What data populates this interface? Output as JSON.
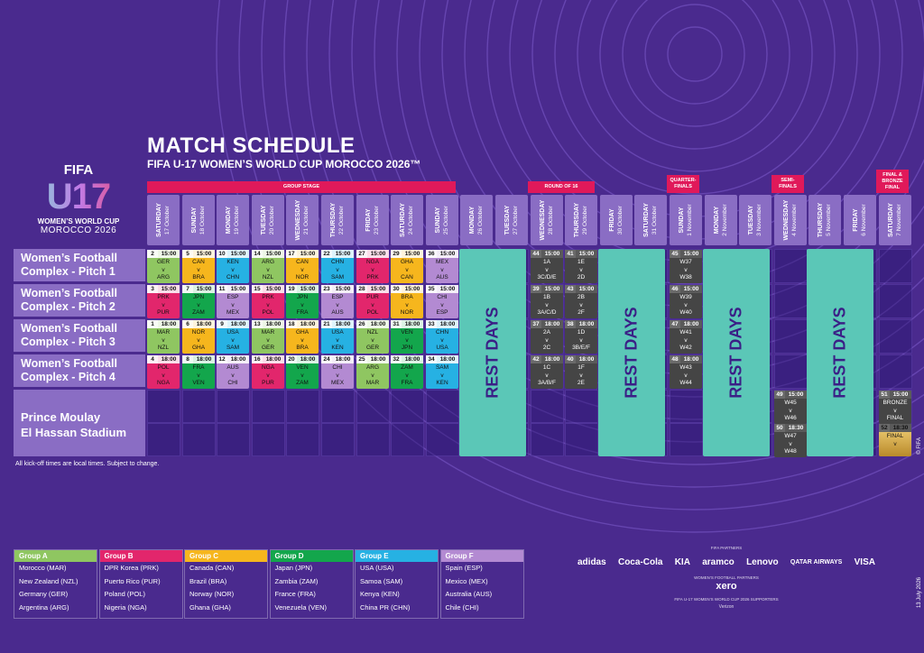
{
  "title": "MATCH SCHEDULE",
  "subtitle": "FIFA U-17 WOMEN’S WORLD CUP MOROCCO 2026™",
  "logo": {
    "fifa": "FIFA",
    "u17": "U17",
    "wwc": "WOMEN’S WORLD CUP",
    "country": "MOROCCO 2026"
  },
  "stages": {
    "group": "GROUP STAGE",
    "r16": "ROUND OF 16",
    "qf1": "QUARTER-",
    "qf2": "FINALS",
    "sf1": "SEMI-",
    "sf2": "FINALS",
    "f1": "FINAL &",
    "f2": "BRONZE",
    "f3": "FINAL"
  },
  "days": [
    {
      "d": "SATURDAY",
      "t": "17 October"
    },
    {
      "d": "SUNDAY",
      "t": "18 October"
    },
    {
      "d": "MONDAY",
      "t": "19 October"
    },
    {
      "d": "TUESDAY",
      "t": "20 October"
    },
    {
      "d": "WEDNESDAY",
      "t": "21 October"
    },
    {
      "d": "THURSDAY",
      "t": "22 October"
    },
    {
      "d": "FRIDAY",
      "t": "23 October"
    },
    {
      "d": "SATURDAY",
      "t": "24 October"
    },
    {
      "d": "SUNDAY",
      "t": "25 October"
    },
    {
      "d": "MONDAY",
      "t": "26 October"
    },
    {
      "d": "TUESDAY",
      "t": "27 October"
    },
    {
      "d": "WEDNESDAY",
      "t": "28 October"
    },
    {
      "d": "THURSDAY",
      "t": "29 October"
    },
    {
      "d": "FRIDAY",
      "t": "30 October"
    },
    {
      "d": "SATURDAY",
      "t": "31 October"
    },
    {
      "d": "SUNDAY",
      "t": "1 November"
    },
    {
      "d": "MONDAY",
      "t": "2 November"
    },
    {
      "d": "TUESDAY",
      "t": "3 November"
    },
    {
      "d": "WEDNESDAY",
      "t": "4 November"
    },
    {
      "d": "THURSDAY",
      "t": "5 November"
    },
    {
      "d": "FRIDAY",
      "t": "6 November"
    },
    {
      "d": "SATURDAY",
      "t": "7 November"
    }
  ],
  "venues": [
    {
      "a": "Women’s Football",
      "b": "Complex - Pitch 1"
    },
    {
      "a": "Women’s Football",
      "b": "Complex - Pitch 2"
    },
    {
      "a": "Women’s Football",
      "b": "Complex - Pitch 3"
    },
    {
      "a": "Women’s Football",
      "b": "Complex - Pitch 4"
    },
    {
      "a": "Prince Moulay",
      "b": "El Hassan Stadium"
    }
  ],
  "rest_label": "REST DAYS",
  "matches": [
    {
      "n": "2",
      "t": "15:00",
      "a": "GER",
      "b": "ARG",
      "c": "#8fc661"
    },
    {
      "n": "5",
      "t": "15:00",
      "a": "CAN",
      "b": "BRA",
      "c": "#f6b61d"
    },
    {
      "n": "10",
      "t": "15:00",
      "a": "KEN",
      "b": "CHN",
      "c": "#26b1e3"
    },
    {
      "n": "14",
      "t": "15:00",
      "a": "ARG",
      "b": "NZL",
      "c": "#8fc661"
    },
    {
      "n": "17",
      "t": "15:00",
      "a": "CAN",
      "b": "NOR",
      "c": "#f6b61d"
    },
    {
      "n": "22",
      "t": "15:00",
      "a": "CHN",
      "b": "SAM",
      "c": "#26b1e3"
    },
    {
      "n": "27",
      "t": "15:00",
      "a": "NGA",
      "b": "PRK",
      "c": "#e2266c"
    },
    {
      "n": "29",
      "t": "15:00",
      "a": "GHA",
      "b": "CAN",
      "c": "#f6b61d"
    },
    {
      "n": "36",
      "t": "15:00",
      "a": "MEX",
      "b": "AUS",
      "c": "#b38ad2"
    },
    {
      "n": "3",
      "t": "15:00",
      "a": "PRK",
      "b": "PUR",
      "c": "#e2266c"
    },
    {
      "n": "7",
      "t": "15:00",
      "a": "JPN",
      "b": "ZAM",
      "c": "#13a64c"
    },
    {
      "n": "11",
      "t": "15:00",
      "a": "ESP",
      "b": "MEX",
      "c": "#b38ad2"
    },
    {
      "n": "15",
      "t": "15:00",
      "a": "PRK",
      "b": "POL",
      "c": "#e2266c"
    },
    {
      "n": "19",
      "t": "15:00",
      "a": "JPN",
      "b": "FRA",
      "c": "#13a64c"
    },
    {
      "n": "23",
      "t": "15:00",
      "a": "ESP",
      "b": "AUS",
      "c": "#b38ad2"
    },
    {
      "n": "28",
      "t": "15:00",
      "a": "PUR",
      "b": "POL",
      "c": "#e2266c"
    },
    {
      "n": "30",
      "t": "15:00",
      "a": "BRA",
      "b": "NOR",
      "c": "#f6b61d"
    },
    {
      "n": "35",
      "t": "15:00",
      "a": "CHI",
      "b": "ESP",
      "c": "#b38ad2"
    },
    {
      "n": "1",
      "t": "18:00",
      "a": "MAR",
      "b": "NZL",
      "c": "#8fc661"
    },
    {
      "n": "6",
      "t": "18:00",
      "a": "NOR",
      "b": "GHA",
      "c": "#f6b61d"
    },
    {
      "n": "9",
      "t": "18:00",
      "a": "USA",
      "b": "SAM",
      "c": "#26b1e3"
    },
    {
      "n": "13",
      "t": "18:00",
      "a": "MAR",
      "b": "GER",
      "c": "#8fc661"
    },
    {
      "n": "18",
      "t": "18:00",
      "a": "GHA",
      "b": "BRA",
      "c": "#f6b61d"
    },
    {
      "n": "21",
      "t": "18:00",
      "a": "USA",
      "b": "KEN",
      "c": "#26b1e3"
    },
    {
      "n": "26",
      "t": "18:00",
      "a": "NZL",
      "b": "GER",
      "c": "#8fc661"
    },
    {
      "n": "31",
      "t": "18:00",
      "a": "VEN",
      "b": "JPN",
      "c": "#13a64c"
    },
    {
      "n": "33",
      "t": "18:00",
      "a": "CHN",
      "b": "USA",
      "c": "#26b1e3"
    },
    {
      "n": "4",
      "t": "18:00",
      "a": "POL",
      "b": "NGA",
      "c": "#e2266c"
    },
    {
      "n": "8",
      "t": "18:00",
      "a": "FRA",
      "b": "VEN",
      "c": "#13a64c"
    },
    {
      "n": "12",
      "t": "18:00",
      "a": "AUS",
      "b": "CHI",
      "c": "#b38ad2"
    },
    {
      "n": "16",
      "t": "18:00",
      "a": "NGA",
      "b": "PUR",
      "c": "#e2266c"
    },
    {
      "n": "20",
      "t": "18:00",
      "a": "VEN",
      "b": "ZAM",
      "c": "#13a64c"
    },
    {
      "n": "24",
      "t": "18:00",
      "a": "CHI",
      "b": "MEX",
      "c": "#b38ad2"
    },
    {
      "n": "25",
      "t": "18:00",
      "a": "ARG",
      "b": "MAR",
      "c": "#8fc661"
    },
    {
      "n": "32",
      "t": "18:00",
      "a": "ZAM",
      "b": "FRA",
      "c": "#13a64c"
    },
    {
      "n": "34",
      "t": "18:00",
      "a": "SAM",
      "b": "KEN",
      "c": "#26b1e3"
    }
  ],
  "knockout": [
    {
      "n": "44",
      "t": "15:00",
      "a": "1A",
      "b": "3C/D/E"
    },
    {
      "n": "41",
      "t": "15:00",
      "a": "1E",
      "b": "2D"
    },
    {
      "n": "39",
      "t": "15:00",
      "a": "1B",
      "b": "3A/C/D"
    },
    {
      "n": "43",
      "t": "15:00",
      "a": "2B",
      "b": "2F"
    },
    {
      "n": "37",
      "t": "18:00",
      "a": "2A",
      "b": "2C"
    },
    {
      "n": "38",
      "t": "18:00",
      "a": "1D",
      "b": "3B/E/F"
    },
    {
      "n": "42",
      "t": "18:00",
      "a": "1C",
      "b": "3A/B/F"
    },
    {
      "n": "40",
      "t": "18:00",
      "a": "1F",
      "b": "2E"
    },
    {
      "n": "45",
      "t": "15:00",
      "a": "W37",
      "b": "W38"
    },
    {
      "n": "46",
      "t": "15:00",
      "a": "W39",
      "b": "W40"
    },
    {
      "n": "47",
      "t": "18:00",
      "a": "W41",
      "b": "W42"
    },
    {
      "n": "48",
      "t": "18:00",
      "a": "W43",
      "b": "W44"
    },
    {
      "n": "49",
      "t": "15:00",
      "a": "W45",
      "b": "W46"
    },
    {
      "n": "50",
      "t": "18:30",
      "a": "W47",
      "b": "W48"
    },
    {
      "n": "51",
      "t": "15:00",
      "a": "BRONZE",
      "b": "FINAL"
    },
    {
      "n": "52",
      "t": "18:30",
      "a": "FINAL",
      "b": ""
    }
  ],
  "vs": "v",
  "kickoff_note": "All kick-off times are local times. Subject to change.",
  "groups": [
    {
      "name": "Group A",
      "color": "#8fc661",
      "teams": [
        "Morocco (MAR)",
        "New Zealand (NZL)",
        "Germany (GER)",
        "Argentina (ARG)"
      ]
    },
    {
      "name": "Group B",
      "color": "#e2266c",
      "teams": [
        "DPR Korea (PRK)",
        "Puerto Rico (PUR)",
        "Poland (POL)",
        "Nigeria (NGA)"
      ]
    },
    {
      "name": "Group C",
      "color": "#f6b61d",
      "teams": [
        "Canada (CAN)",
        "Brazil (BRA)",
        "Norway (NOR)",
        "Ghana (GHA)"
      ]
    },
    {
      "name": "Group D",
      "color": "#13a64c",
      "teams": [
        "Japan (JPN)",
        "Zambia (ZAM)",
        "France (FRA)",
        "Venezuela (VEN)"
      ]
    },
    {
      "name": "Group E",
      "color": "#26b1e3",
      "teams": [
        "USA (USA)",
        "Samoa (SAM)",
        "Kenya (KEN)",
        "China PR (CHN)"
      ]
    },
    {
      "name": "Group F",
      "color": "#b38ad2",
      "teams": [
        "Spain (ESP)",
        "Mexico (MEX)",
        "Australia (AUS)",
        "Chile (CHI)"
      ]
    }
  ],
  "partners": {
    "title": "FIFA PARTNERS",
    "list": [
      "adidas",
      "Coca-Cola",
      "KIA",
      "aramco",
      "Lenovo",
      "QATAR AIRWAYS",
      "VISA"
    ],
    "wf_title": "WOMEN’S FOOTBALL PARTNERS",
    "wf": "xero",
    "sup_title": "FIFA U-17 WOMEN’S WORLD CUP 2026 SUPPORTERS",
    "sup": "Verizon"
  },
  "copyright": "© FIFA",
  "date": "13 July 2026"
}
